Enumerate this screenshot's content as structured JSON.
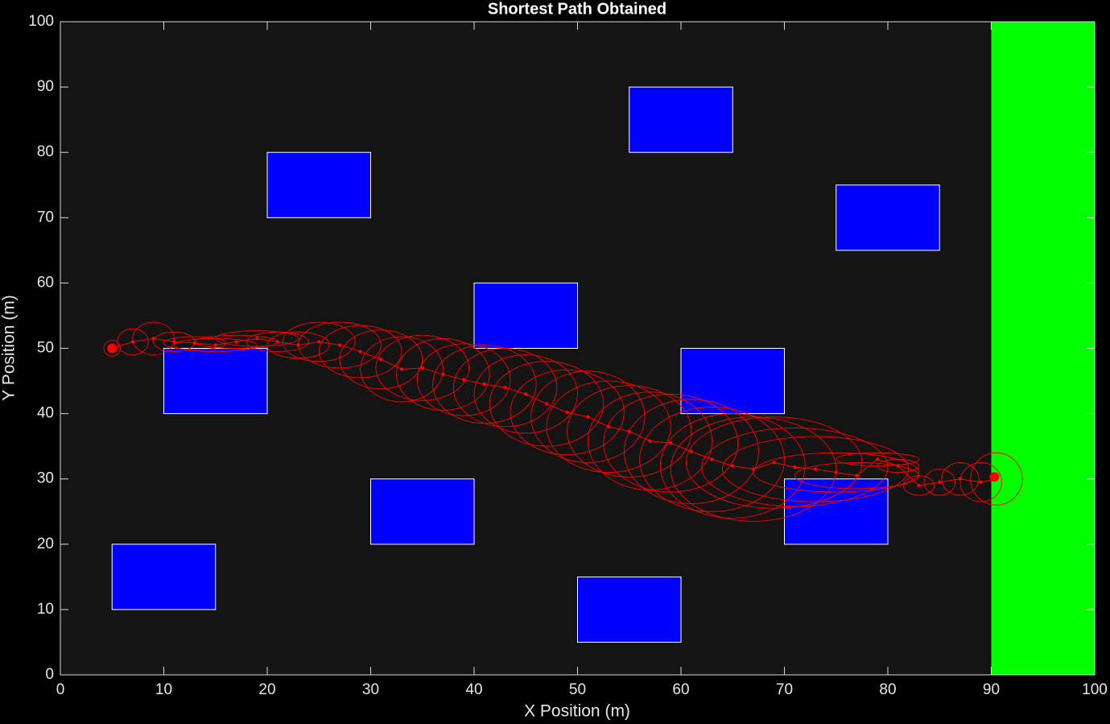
{
  "chart_data": {
    "type": "path-planning",
    "title": "Shortest Path Obtained",
    "x_label": "X Position (m)",
    "y_label": "Y Position (m)",
    "xlim": [
      0,
      100
    ],
    "ylim": [
      0,
      100
    ],
    "xticks": [
      0,
      10,
      20,
      30,
      40,
      50,
      60,
      70,
      80,
      90,
      100
    ],
    "yticks": [
      0,
      10,
      20,
      30,
      40,
      50,
      60,
      70,
      80,
      90,
      100
    ],
    "obstacle_color": "#0000ff",
    "obstacles": [
      {
        "x": 10,
        "y": 40,
        "width": 10,
        "height": 10
      },
      {
        "x": 20,
        "y": 70,
        "width": 10,
        "height": 10
      },
      {
        "x": 30,
        "y": 20,
        "width": 10,
        "height": 10
      },
      {
        "x": 40,
        "y": 50,
        "width": 10,
        "height": 10
      },
      {
        "x": 5,
        "y": 10,
        "width": 10,
        "height": 10
      },
      {
        "x": 50,
        "y": 5,
        "width": 10,
        "height": 10
      },
      {
        "x": 55,
        "y": 80,
        "width": 10,
        "height": 10
      },
      {
        "x": 60,
        "y": 40,
        "width": 10,
        "height": 10
      },
      {
        "x": 70,
        "y": 20,
        "width": 10,
        "height": 10
      },
      {
        "x": 75,
        "y": 65,
        "width": 10,
        "height": 10
      }
    ],
    "goal_region": {
      "x": 90,
      "y": 0,
      "width": 10,
      "height": 100,
      "color": "#00ff00"
    },
    "start": {
      "x": 5,
      "y": 50
    },
    "goal": {
      "x": 90.3,
      "y": 30.3
    },
    "series": [
      {
        "color": "#ff0000",
        "x": [
          5,
          7,
          9,
          11,
          13,
          15,
          17,
          19,
          21,
          23,
          25,
          27,
          29,
          31,
          33,
          35,
          37,
          39,
          41,
          43,
          45,
          47,
          49,
          51,
          53,
          55,
          57,
          59,
          61,
          63,
          65,
          67,
          69,
          71,
          73,
          75,
          77,
          79,
          81,
          83,
          85,
          87,
          89,
          90.5
        ],
        "y": [
          50,
          51,
          51.5,
          51,
          50.8,
          50.5,
          51,
          51.5,
          51,
          50.5,
          51,
          50.5,
          49.5,
          48.3,
          46.8,
          47,
          46,
          45.2,
          44.5,
          44,
          43,
          41.5,
          40.2,
          39.5,
          38,
          37.3,
          35.8,
          35.5,
          34.2,
          33,
          32,
          31.5,
          32.5,
          31.8,
          31.5,
          31,
          30.5,
          33,
          32,
          29,
          29.5,
          30,
          29.5,
          30
        ],
        "rx": [
          0.8,
          1.5,
          2,
          2,
          3,
          4,
          4,
          4,
          3,
          3,
          3.5,
          4,
          4,
          4,
          4,
          4.5,
          4.5,
          4.5,
          5,
          5,
          5,
          5.5,
          5.5,
          5.5,
          6,
          6,
          6,
          6.5,
          6.5,
          7,
          7,
          8,
          8.5,
          9,
          9,
          8,
          6,
          4,
          2,
          1.5,
          1.5,
          1.8,
          2,
          2.5
        ],
        "ry": [
          1.2,
          2,
          2.5,
          1.5,
          1,
          1,
          1,
          1.2,
          1.5,
          2,
          3,
          3.5,
          4,
          4.5,
          5,
          5,
          5.5,
          5.5,
          6,
          6,
          6,
          6.5,
          6.5,
          7,
          7,
          7,
          7.5,
          7.5,
          8,
          8,
          8,
          8,
          7,
          6,
          5,
          3,
          2,
          1,
          1,
          1.5,
          2,
          2.5,
          3,
          4
        ]
      }
    ]
  }
}
